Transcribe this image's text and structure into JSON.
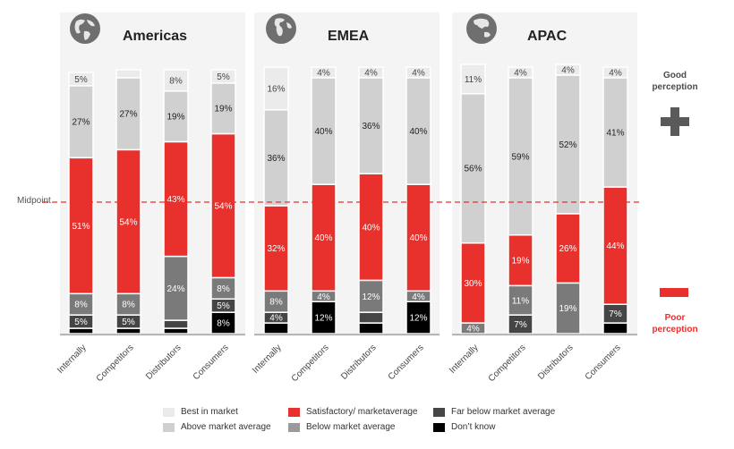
{
  "colors": {
    "best": "#ebebeb",
    "above": "#d0d0d0",
    "satisfactory": "#e8302c",
    "below": "#7a7a7a",
    "far_below": "#454545",
    "dont_know": "#000000",
    "accent_red": "#e8302c",
    "plus_gray": "#5a5a5a"
  },
  "labels": {
    "midpoint": "Midpoint",
    "good_perception": "Good perception",
    "poor_perception": "Poor perception"
  },
  "chart_data": {
    "type": "bar",
    "stacked": true,
    "ylim": [
      0,
      100
    ],
    "midpoint_value": 50,
    "categories": [
      "Internally",
      "Competitors",
      "Distributors",
      "Consumers"
    ],
    "segments": [
      {
        "key": "best",
        "name": "Best in market"
      },
      {
        "key": "above",
        "name": "Above market average"
      },
      {
        "key": "satisfactory",
        "name": "Satisfactory/ marketaverage"
      },
      {
        "key": "below",
        "name": "Below market average"
      },
      {
        "key": "far_below",
        "name": "Far below market average"
      },
      {
        "key": "dont_know",
        "name": "Don’t know"
      }
    ],
    "regions": [
      {
        "name": "Americas",
        "bars": [
          {
            "category": "Internally",
            "values": {
              "dont_know": 2,
              "far_below": 5,
              "below": 8,
              "satisfactory": 51,
              "above": 27,
              "best": 5
            },
            "labels": {
              "far_below": "5%",
              "below": "8%",
              "satisfactory": "51%",
              "above": "27%",
              "best": "5%"
            }
          },
          {
            "category": "Competitors",
            "values": {
              "dont_know": 2,
              "far_below": 5,
              "below": 8,
              "satisfactory": 54,
              "above": 27,
              "best": 3
            },
            "labels": {
              "far_below": "5%",
              "below": "8%",
              "satisfactory": "54%",
              "above": "27%"
            }
          },
          {
            "category": "Distributors",
            "values": {
              "dont_know": 2,
              "far_below": 3,
              "below": 24,
              "satisfactory": 43,
              "above": 19,
              "best": 8
            },
            "labels": {
              "below": "24%",
              "satisfactory": "43%",
              "above": "19%",
              "best": "8%"
            }
          },
          {
            "category": "Consumers",
            "values": {
              "dont_know": 8,
              "far_below": 5,
              "below": 8,
              "satisfactory": 54,
              "above": 19,
              "best": 5
            },
            "labels": {
              "dont_know": "8%",
              "far_below": "5%",
              "below": "8%",
              "satisfactory": "54%",
              "above": "19%",
              "best": "5%"
            }
          }
        ]
      },
      {
        "name": "EMEA",
        "bars": [
          {
            "category": "Internally",
            "values": {
              "dont_know": 4,
              "far_below": 4,
              "below": 8,
              "satisfactory": 32,
              "above": 36,
              "best": 16
            },
            "labels": {
              "far_below": "4%",
              "below": "8%",
              "satisfactory": "32%",
              "above": "36%",
              "best": "16%"
            }
          },
          {
            "category": "Competitors",
            "values": {
              "dont_know": 12,
              "below": 4,
              "satisfactory": 40,
              "above": 40,
              "best": 4
            },
            "labels": {
              "dont_know": "12%",
              "below": "4%",
              "satisfactory": "40%",
              "above": "40%",
              "best": "4%"
            }
          },
          {
            "category": "Distributors",
            "values": {
              "dont_know": 4,
              "far_below": 4,
              "below": 12,
              "satisfactory": 40,
              "above": 36,
              "best": 4
            },
            "labels": {
              "below": "12%",
              "satisfactory": "40%",
              "above": "36%",
              "best": "4%"
            }
          },
          {
            "category": "Consumers",
            "values": {
              "dont_know": 12,
              "below": 4,
              "satisfactory": 40,
              "above": 40,
              "best": 4
            },
            "labels": {
              "dont_know": "12%",
              "below": "4%",
              "satisfactory": "40%",
              "above": "40%",
              "best": "4%"
            }
          }
        ]
      },
      {
        "name": "APAC",
        "bars": [
          {
            "category": "Internally",
            "values": {
              "below": 4,
              "satisfactory": 30,
              "above": 56,
              "best": 11
            },
            "labels": {
              "below": "4%",
              "satisfactory": "30%",
              "above": "56%",
              "best": "11%"
            }
          },
          {
            "category": "Competitors",
            "values": {
              "far_below": 7,
              "below": 11,
              "satisfactory": 19,
              "above": 59,
              "best": 4
            },
            "labels": {
              "far_below": "7%",
              "below": "11%",
              "satisfactory": "19%",
              "above": "59%",
              "best": "4%"
            }
          },
          {
            "category": "Distributors",
            "values": {
              "below": 19,
              "satisfactory": 26,
              "above": 52,
              "best": 4
            },
            "labels": {
              "below": "19%",
              "satisfactory": "26%",
              "above": "52%",
              "best": "4%"
            }
          },
          {
            "category": "Consumers",
            "values": {
              "dont_know": 4,
              "far_below": 7,
              "satisfactory": 44,
              "above": 41,
              "best": 4
            },
            "labels": {
              "far_below": "7%",
              "satisfactory": "44%",
              "above": "41%",
              "best": "4%"
            }
          }
        ]
      }
    ]
  }
}
